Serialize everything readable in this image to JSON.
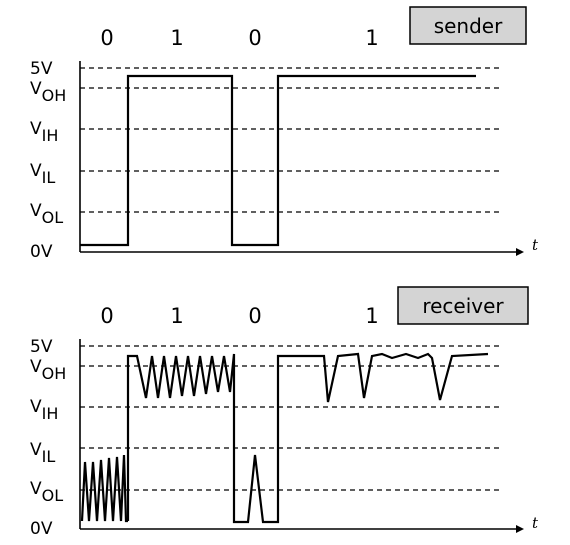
{
  "panels": [
    {
      "id": "sender",
      "label": "sender",
      "bits": [
        "0",
        "1",
        "0",
        "1"
      ],
      "levels": {
        "v5": "5V",
        "voh": {
          "main": "V",
          "sub": "OH"
        },
        "vih": {
          "main": "V",
          "sub": "IH"
        },
        "vil": {
          "main": "V",
          "sub": "IL"
        },
        "vol": {
          "main": "V",
          "sub": "OL"
        },
        "v0": "0V"
      },
      "time_label": "t"
    },
    {
      "id": "receiver",
      "label": "receiver",
      "bits": [
        "0",
        "1",
        "0",
        "1"
      ],
      "levels": {
        "v5": "5V",
        "voh": {
          "main": "V",
          "sub": "OH"
        },
        "vih": {
          "main": "V",
          "sub": "IH"
        },
        "vil": {
          "main": "V",
          "sub": "IL"
        },
        "vol": {
          "main": "V",
          "sub": "OL"
        },
        "v0": "0V"
      },
      "time_label": "t"
    }
  ]
}
